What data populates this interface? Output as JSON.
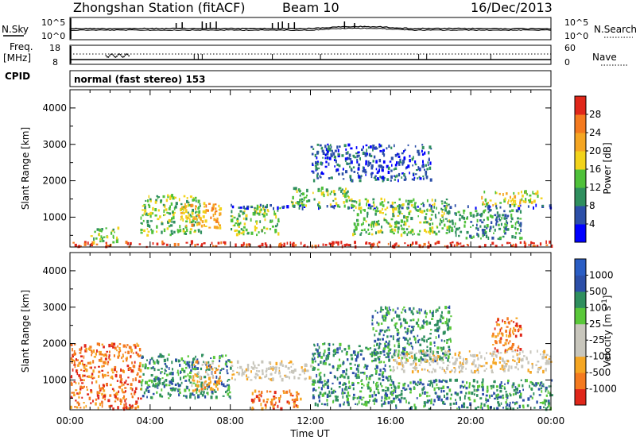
{
  "header": {
    "station": "Zhongshan Station (fitACF)",
    "beam": "Beam 10",
    "date": "16/Dec/2013"
  },
  "control_panels": {
    "nsky_label": "N.Sky",
    "nsearch_label": "N.Search",
    "freq_label_1": "Freq.",
    "freq_label_2": "[MHz]",
    "nave_label": "Nave",
    "cpid_label": "CPID",
    "cpid_text": "normal (fast stereo) 153",
    "noise_left_ticks": [
      "10^5",
      "10^0"
    ],
    "noise_right_ticks": [
      "10^5",
      "10^0"
    ],
    "freq_ticks": [
      "18",
      "8"
    ],
    "nave_ticks": [
      "60",
      "0"
    ]
  },
  "chart_data": [
    {
      "type": "heatmap",
      "panel": "power",
      "ylabel": "Slant Range [km]",
      "yticks": [
        "1000",
        "2000",
        "3000",
        "4000"
      ],
      "ylim": [
        180,
        4500
      ],
      "xlim": [
        0,
        24
      ],
      "colorbar_label": "Power [dB]",
      "colorbar_ticks": [
        "4",
        "8",
        "12",
        "16",
        "20",
        "24",
        "28"
      ],
      "colorbar_colors": [
        "#0000ff",
        "#2c4fa8",
        "#2f8f5e",
        "#4fc13a",
        "#f2d31b",
        "#f5a623",
        "#f47a1f",
        "#e0271a"
      ],
      "scatter_regions": [
        {
          "t": [
            0.0,
            24.0
          ],
          "r": [
            180,
            320
          ],
          "level": 7
        },
        {
          "t": [
            1.0,
            2.5
          ],
          "r": [
            300,
            700
          ],
          "level": 3
        },
        {
          "t": [
            3.5,
            6.5
          ],
          "r": [
            500,
            1600
          ],
          "level": 3
        },
        {
          "t": [
            5.5,
            7.5
          ],
          "r": [
            700,
            1400
          ],
          "level": 5
        },
        {
          "t": [
            8.0,
            10.5
          ],
          "r": [
            500,
            1300
          ],
          "level": 3
        },
        {
          "t": [
            8.0,
            24.0
          ],
          "r": [
            1230,
            1330
          ],
          "level": 1
        },
        {
          "t": [
            11.0,
            14.0
          ],
          "r": [
            1300,
            1800
          ],
          "level": 3
        },
        {
          "t": [
            12.0,
            18.0
          ],
          "r": [
            2000,
            3000
          ],
          "level": 1
        },
        {
          "t": [
            14.0,
            19.0
          ],
          "r": [
            500,
            1500
          ],
          "level": 3
        },
        {
          "t": [
            19.0,
            22.5
          ],
          "r": [
            400,
            1200
          ],
          "level": 2
        },
        {
          "t": [
            20.5,
            23.5
          ],
          "r": [
            1300,
            1700
          ],
          "level": 4
        }
      ]
    },
    {
      "type": "heatmap",
      "panel": "velocity",
      "ylabel": "Slant Range [km]",
      "yticks": [
        "1000",
        "2000",
        "3000",
        "4000"
      ],
      "ylim": [
        180,
        4500
      ],
      "xlabel": "Time UT",
      "xticks": [
        "00:00",
        "04:00",
        "08:00",
        "12:00",
        "16:00",
        "20:00",
        "00:00"
      ],
      "xlim": [
        0,
        24
      ],
      "colorbar_label": "Velocity [m s^-1]",
      "colorbar_ticks": [
        "-1000",
        "-500",
        "-100",
        "-25",
        "25",
        "100",
        "500",
        "1000"
      ],
      "colorbar_colors": [
        "#e0271a",
        "#f47a1f",
        "#f5a623",
        "#c8c6bc",
        "#c8c6bc",
        "#5ac83a",
        "#2f8f5e",
        "#2c4fa8",
        "#2a5dc4"
      ],
      "scatter_regions": [
        {
          "t": [
            0.0,
            3.5
          ],
          "r": [
            200,
            2000
          ],
          "level": 1
        },
        {
          "t": [
            3.5,
            8.0
          ],
          "r": [
            500,
            1700
          ],
          "level": 6
        },
        {
          "t": [
            6.0,
            7.5
          ],
          "r": [
            700,
            1500
          ],
          "level": 2
        },
        {
          "t": [
            8.0,
            12.0
          ],
          "r": [
            1000,
            1500
          ],
          "level": 3
        },
        {
          "t": [
            9.0,
            11.5
          ],
          "r": [
            200,
            700
          ],
          "level": 1
        },
        {
          "t": [
            12.0,
            16.0
          ],
          "r": [
            300,
            2000
          ],
          "level": 6
        },
        {
          "t": [
            15.0,
            19.0
          ],
          "r": [
            1500,
            3000
          ],
          "level": 6
        },
        {
          "t": [
            16.0,
            24.0
          ],
          "r": [
            1200,
            1800
          ],
          "level": 3
        },
        {
          "t": [
            16.0,
            24.0
          ],
          "r": [
            200,
            1000
          ],
          "level": 6
        },
        {
          "t": [
            21.0,
            22.5
          ],
          "r": [
            1800,
            2700
          ],
          "level": 1
        }
      ]
    }
  ]
}
